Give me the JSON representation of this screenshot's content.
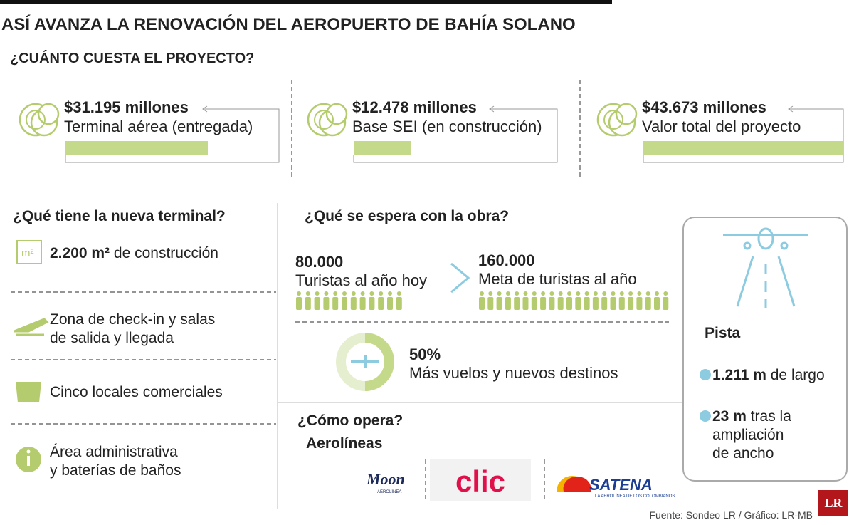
{
  "header": {
    "title": "ASÍ AVANZA LA RENOVACIÓN DEL AEROPUERTO DE BAHÍA SOLANO",
    "section": "¿CUÁNTO CUESTA EL PROYECTO?"
  },
  "costs": [
    {
      "amount": "$31.195 millones",
      "value": 31195,
      "label": "Terminal aérea (entregada)"
    },
    {
      "amount": "$12.478 millones",
      "value": 12478,
      "label": "Base SEI (en construcción)"
    },
    {
      "amount": "$43.673 millones",
      "value": 43673,
      "label": "Valor total del proyecto"
    }
  ],
  "terminal": {
    "title": "¿Qué tiene la nueva terminal?",
    "icon_text": "m²",
    "items": [
      {
        "bold": "2.200 m²",
        "lines": [
          "de construcción"
        ]
      },
      {
        "lines": [
          "Zona de check-in y salas",
          "de salida y llegada"
        ]
      },
      {
        "lines": [
          "Cinco locales comerciales"
        ]
      },
      {
        "lines": [
          "Área administrativa",
          "y baterías de baños"
        ]
      }
    ]
  },
  "expectations": {
    "title": "¿Qué se espera con la obra?",
    "current": {
      "number": "80.000",
      "label": "Turistas al año hoy"
    },
    "goal": {
      "number": "160.000",
      "label": "Meta de turistas al año"
    },
    "flights": {
      "value": 50,
      "label": "50%",
      "text": "Más vuelos y nuevos destinos"
    }
  },
  "operations": {
    "title": "¿Cómo opera?",
    "subtitle": "Aerolíneas",
    "airlines": [
      {
        "name": "Moon",
        "tagline": "AEROLÍNEA"
      },
      {
        "name": "clic"
      },
      {
        "name": "SATENA",
        "tagline": "LA AEROLÍNEA DE LOS COLOMBIANOS"
      }
    ]
  },
  "runway": {
    "title": "Pista",
    "items": [
      {
        "bold": "1.211 m",
        "lines": [
          "de largo"
        ]
      },
      {
        "bold": "23 m",
        "lines": [
          "tras la",
          "ampliación",
          "de ancho"
        ]
      }
    ]
  },
  "footer": {
    "source": "Fuente: Sondeo LR / Gráfico: LR-MB",
    "logo": "LR"
  }
}
